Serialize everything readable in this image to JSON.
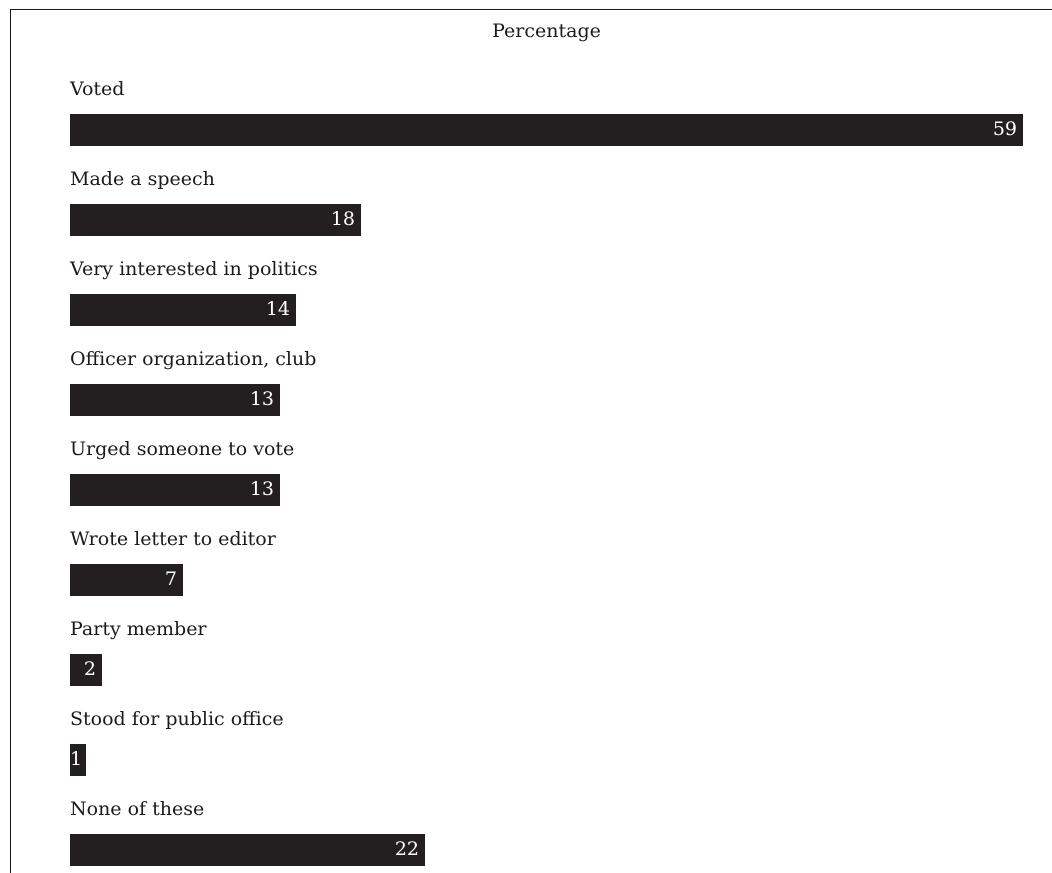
{
  "chart_data": {
    "type": "bar",
    "orientation": "horizontal",
    "title": "Percentage",
    "categories": [
      "Voted",
      "Made a speech",
      "Very interested in politics",
      "Officer organization, club",
      "Urged someone to vote",
      "Wrote letter to editor",
      "Party member",
      "Stood for public office",
      "None of these"
    ],
    "values": [
      59,
      18,
      14,
      13,
      13,
      7,
      2,
      1,
      22
    ],
    "xlim": [
      0,
      59
    ],
    "grid": false,
    "legend": "none",
    "colors": {
      "bar": "#231f20",
      "value_text": "#ffffff",
      "label_text": "#1a1a1a"
    }
  }
}
